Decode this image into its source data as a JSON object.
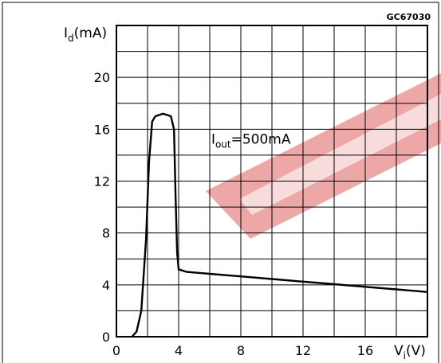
{
  "figure_code": "GC67030",
  "chart_data": {
    "type": "line",
    "ylabel": "I",
    "ylabel_sub": "d",
    "ylabel_unit": "(mA)",
    "xlabel": "V",
    "xlabel_sub": "i",
    "xlabel_unit": "(V)",
    "xlim": [
      0,
      20
    ],
    "ylim": [
      0,
      24
    ],
    "x_ticks": [
      0,
      4,
      8,
      12,
      16
    ],
    "y_ticks": [
      0,
      4,
      8,
      12,
      16,
      20
    ],
    "grid": true,
    "annotation": {
      "text_main": "I",
      "text_sub": "out",
      "text_rest": "=500mA",
      "x": 6.1,
      "y": 14.9
    },
    "series": [
      {
        "x": [
          1.0,
          1.3,
          1.6,
          1.9,
          2.1,
          2.3,
          2.5,
          3.0,
          3.5,
          3.7,
          3.8,
          3.9,
          4.0,
          4.5,
          6,
          8,
          10,
          12,
          14,
          16,
          18,
          20
        ],
        "y": [
          0.0,
          0.4,
          2.0,
          7.5,
          13.5,
          16.6,
          17.0,
          17.2,
          17.0,
          16.0,
          11.0,
          6.5,
          5.2,
          5.0,
          4.85,
          4.65,
          4.45,
          4.25,
          4.05,
          3.85,
          3.65,
          3.45
        ]
      }
    ]
  }
}
